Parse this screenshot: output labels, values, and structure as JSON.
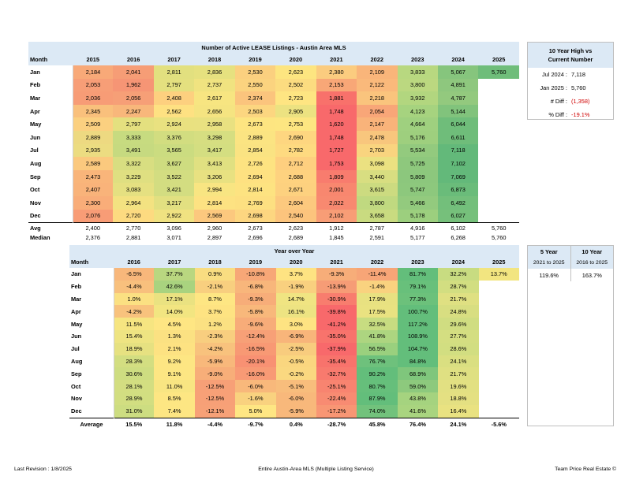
{
  "listings": {
    "title": "Number of Active LEASE Listings - Austin Area MLS",
    "month_header": "Month",
    "years": [
      "2015",
      "2016",
      "2017",
      "2018",
      "2019",
      "2020",
      "2021",
      "2022",
      "2023",
      "2024",
      "2025"
    ],
    "rows": [
      {
        "month": "Jan",
        "values": [
          "2,184",
          "2,041",
          "2,811",
          "2,836",
          "2,530",
          "2,623",
          "2,380",
          "2,109",
          "3,833",
          "5,067",
          "5,760"
        ],
        "colors": [
          "#f8a978",
          "#f69d76",
          "#e2e07f",
          "#e6e17f",
          "#fbd07f",
          "#fde580",
          "#fbcc7f",
          "#f9b57a",
          "#b8d880",
          "#86c57d",
          "#6fbd7a"
        ]
      },
      {
        "month": "Feb",
        "values": [
          "2,053",
          "1,962",
          "2,797",
          "2,737",
          "2,550",
          "2,502",
          "2,153",
          "2,122",
          "3,800",
          "4,891",
          ""
        ],
        "colors": [
          "#f79e77",
          "#f69575",
          "#e4e07f",
          "#f0e380",
          "#fbd37f",
          "#fcdc80",
          "#f8a777",
          "#fab97b",
          "#bbd880",
          "#8ec77e",
          ""
        ]
      },
      {
        "month": "Mar",
        "values": [
          "2,036",
          "2,056",
          "2,408",
          "2,617",
          "2,374",
          "2,723",
          "1,881",
          "2,218",
          "3,932",
          "4,787",
          ""
        ],
        "colors": [
          "#f79c76",
          "#f69f77",
          "#fdd07f",
          "#f7e581",
          "#fbc47d",
          "#fee582",
          "#f8716b",
          "#fac47d",
          "#b2d67f",
          "#93c97e",
          ""
        ]
      },
      {
        "month": "Apr",
        "values": [
          "2,345",
          "2,247",
          "2,562",
          "2,656",
          "2,503",
          "2,905",
          "1,748",
          "2,054",
          "4,123",
          "5,144",
          ""
        ],
        "colors": [
          "#f9c07c",
          "#f8b77b",
          "#fee182",
          "#f5e481",
          "#fcd680",
          "#ece281",
          "#f8696b",
          "#f8a678",
          "#a6d37f",
          "#81c37c",
          ""
        ]
      },
      {
        "month": "May",
        "values": [
          "2,509",
          "2,797",
          "2,924",
          "2,958",
          "2,673",
          "2,753",
          "1,620",
          "2,147",
          "4,664",
          "6,044",
          ""
        ],
        "colors": [
          "#fbd080",
          "#e4e07f",
          "#e9e180",
          "#e9e181",
          "#fde581",
          "#fde681",
          "#f8696b",
          "#f9b37a",
          "#9fd07f",
          "#6fbd7a",
          ""
        ]
      },
      {
        "month": "Jun",
        "values": [
          "2,889",
          "3,333",
          "3,376",
          "3,298",
          "2,889",
          "2,690",
          "1,748",
          "2,478",
          "5,176",
          "6,611",
          ""
        ],
        "colors": [
          "#edd981",
          "#c7db80",
          "#d2dd80",
          "#d6de81",
          "#fbe482",
          "#fed680",
          "#f8696b",
          "#f8c67d",
          "#9ecf7e",
          "#6fbd7a",
          ""
        ]
      },
      {
        "month": "Jul",
        "values": [
          "2,935",
          "3,491",
          "3,565",
          "3,417",
          "2,854",
          "2,782",
          "1,727",
          "2,703",
          "5,534",
          "7,118",
          ""
        ],
        "colors": [
          "#ecdc81",
          "#c6da80",
          "#cbdc80",
          "#d4de81",
          "#fae382",
          "#feda80",
          "#f8696b",
          "#f9d47f",
          "#93ca7e",
          "#63b97a",
          ""
        ]
      },
      {
        "month": "Aug",
        "values": [
          "2,589",
          "3,322",
          "3,627",
          "3,413",
          "2,726",
          "2,712",
          "1,753",
          "3,098",
          "5,725",
          "7,102",
          ""
        ],
        "colors": [
          "#fbc97e",
          "#d8de81",
          "#cedc80",
          "#e0e081",
          "#fde381",
          "#fecf7f",
          "#f8696b",
          "#ebe181",
          "#8ec87d",
          "#63b97a",
          ""
        ]
      },
      {
        "month": "Sep",
        "values": [
          "2,473",
          "3,229",
          "3,522",
          "3,206",
          "2,694",
          "2,688",
          "1,809",
          "3,440",
          "5,809",
          "7,069",
          ""
        ],
        "colors": [
          "#f9b57a",
          "#dfdf81",
          "#d3dd81",
          "#e8e181",
          "#fee181",
          "#fed27f",
          "#f87c6e",
          "#d8de81",
          "#8cc77d",
          "#63b97a",
          ""
        ]
      },
      {
        "month": "Oct",
        "values": [
          "2,407",
          "3,083",
          "3,421",
          "2,994",
          "2,814",
          "2,671",
          "2,001",
          "3,615",
          "5,747",
          "6,873",
          ""
        ],
        "colors": [
          "#f9b37a",
          "#e5e081",
          "#d3dd81",
          "#f8e582",
          "#fde381",
          "#fdd17f",
          "#f8876f",
          "#ccdb80",
          "#8dc87d",
          "#6abc7a",
          ""
        ]
      },
      {
        "month": "Nov",
        "values": [
          "2,300",
          "2,964",
          "3,217",
          "2,814",
          "2,769",
          "2,604",
          "2,022",
          "3,800",
          "5,466",
          "6,492",
          ""
        ],
        "colors": [
          "#f9ad79",
          "#f3e281",
          "#e2e081",
          "#fde282",
          "#fde081",
          "#fcc97e",
          "#f88970",
          "#c0d980",
          "#93ca7e",
          "#73bf7b",
          ""
        ]
      },
      {
        "month": "Dec",
        "values": [
          "2,076",
          "2,720",
          "2,922",
          "2,569",
          "2,698",
          "2,540",
          "2,102",
          "3,658",
          "5,178",
          "6,027",
          ""
        ],
        "colors": [
          "#f89c76",
          "#fdda80",
          "#f0e281",
          "#fcc87e",
          "#fdd680",
          "#fcc47d",
          "#f89d76",
          "#c9db80",
          "#9ccf7e",
          "#76c07b",
          ""
        ]
      }
    ],
    "avg_label": "Avg",
    "avg": [
      "2,400",
      "2,770",
      "3,096",
      "2,960",
      "2,673",
      "2,623",
      "1,912",
      "2,787",
      "4,916",
      "6,102",
      "5,760"
    ],
    "median_label": "Median",
    "median": [
      "2,376",
      "2,881",
      "3,071",
      "2,897",
      "2,696",
      "2,689",
      "1,845",
      "2,591",
      "5,177",
      "6,268",
      "5,760"
    ]
  },
  "high_box": {
    "title_line1": "10 Year High vs",
    "title_line2": "Current Number",
    "items": [
      {
        "key": "Jul 2024 :",
        "value": "7,118",
        "red": false
      },
      {
        "key": "Jan 2025 :",
        "value": "5,760",
        "red": false
      },
      {
        "key": "# Diff :",
        "value": "(1,358)",
        "red": true
      },
      {
        "key": "% Diff :",
        "value": "-19.1%",
        "red": true
      }
    ]
  },
  "yoy": {
    "title": "Year over Year",
    "month_header": "Month",
    "years": [
      "2016",
      "2017",
      "2018",
      "2019",
      "2020",
      "2021",
      "2022",
      "2023",
      "2024",
      "2025"
    ],
    "rows": [
      {
        "month": "Jan",
        "values": [
          "-6.5%",
          "37.7%",
          "0.9%",
          "-10.8%",
          "3.7%",
          "-9.3%",
          "-11.4%",
          "81.7%",
          "32.2%",
          "13.7%"
        ],
        "colors": [
          "#f8b77b",
          "#b9d780",
          "#f9dd81",
          "#f7a777",
          "#fee382",
          "#f7ad79",
          "#f7a577",
          "#63be7b",
          "#c8dc81",
          "#f2e580"
        ]
      },
      {
        "month": "Feb",
        "values": [
          "-4.4%",
          "42.6%",
          "-2.1%",
          "-6.8%",
          "-1.9%",
          "-13.9%",
          "-1.4%",
          "79.1%",
          "28.7%",
          ""
        ],
        "colors": [
          "#f8c07d",
          "#a9d37f",
          "#f8cf7f",
          "#f8b67b",
          "#f9d07f",
          "#f69c76",
          "#f9d27f",
          "#68c07b",
          "#d2de81",
          ""
        ]
      },
      {
        "month": "Mar",
        "values": [
          "1.0%",
          "17.1%",
          "8.7%",
          "-9.3%",
          "14.7%",
          "-30.9%",
          "17.9%",
          "77.3%",
          "21.7%",
          ""
        ],
        "colors": [
          "#fbe082",
          "#eae281",
          "#fee683",
          "#f7ad79",
          "#f0e482",
          "#f87d6e",
          "#e8e181",
          "#6cc17b",
          "#dfe082",
          ""
        ]
      },
      {
        "month": "Apr",
        "values": [
          "-4.2%",
          "14.0%",
          "3.7%",
          "-5.8%",
          "16.1%",
          "-39.8%",
          "17.5%",
          "100.7%",
          "24.8%",
          ""
        ],
        "colors": [
          "#f8c27d",
          "#f2e581",
          "#fee382",
          "#f8b87b",
          "#ede382",
          "#f8696b",
          "#e9e281",
          "#63be7b",
          "#d8de81",
          ""
        ]
      },
      {
        "month": "May",
        "values": [
          "11.5%",
          "4.5%",
          "1.2%",
          "-9.6%",
          "3.0%",
          "-41.2%",
          "32.5%",
          "117.2%",
          "29.6%",
          ""
        ],
        "colors": [
          "#f6e581",
          "#fee683",
          "#fbe182",
          "#f7ac79",
          "#fee382",
          "#f8696b",
          "#c7dc81",
          "#63be7b",
          "#d0dd81",
          ""
        ]
      },
      {
        "month": "Jun",
        "values": [
          "15.4%",
          "1.3%",
          "-2.3%",
          "-12.4%",
          "-6.9%",
          "-35.0%",
          "41.8%",
          "108.9%",
          "27.7%",
          ""
        ],
        "colors": [
          "#eee482",
          "#fbe182",
          "#f8ce7f",
          "#f7a077",
          "#f8b57a",
          "#f8736c",
          "#add580",
          "#63be7b",
          "#d4de81",
          ""
        ]
      },
      {
        "month": "Jul",
        "values": [
          "18.9%",
          "2.1%",
          "-4.2%",
          "-16.5%",
          "-2.5%",
          "-37.9%",
          "56.5%",
          "104.7%",
          "28.6%",
          ""
        ],
        "colors": [
          "#e6e181",
          "#fde282",
          "#f8c27d",
          "#f89974",
          "#f8cc7e",
          "#f8696b",
          "#9ad07e",
          "#63be7b",
          "#d2de81",
          ""
        ]
      },
      {
        "month": "Aug",
        "values": [
          "28.3%",
          "9.2%",
          "-5.9%",
          "-20.1%",
          "-0.5%",
          "-35.4%",
          "76.7%",
          "84.8%",
          "24.1%",
          ""
        ],
        "colors": [
          "#d3de81",
          "#fde683",
          "#f8b87b",
          "#f89173",
          "#fad67f",
          "#f8736c",
          "#6ec17c",
          "#63be7b",
          "#dadf81",
          ""
        ]
      },
      {
        "month": "Sep",
        "values": [
          "30.6%",
          "9.1%",
          "-9.0%",
          "-16.0%",
          "-0.2%",
          "-32.7%",
          "90.2%",
          "68.9%",
          "21.7%",
          ""
        ],
        "colors": [
          "#cedd81",
          "#fde683",
          "#f7ae79",
          "#f89a75",
          "#fad880",
          "#f87a6e",
          "#63be7b",
          "#7fc67c",
          "#dfe082",
          ""
        ]
      },
      {
        "month": "Oct",
        "values": [
          "28.1%",
          "11.0%",
          "-12.5%",
          "-6.0%",
          "-5.1%",
          "-25.1%",
          "80.7%",
          "59.0%",
          "19.6%",
          ""
        ],
        "colors": [
          "#d3de81",
          "#f8e582",
          "#f7a077",
          "#f8b87b",
          "#f8bd7c",
          "#f88470",
          "#66bf7b",
          "#8dc97d",
          "#e2e082",
          ""
        ]
      },
      {
        "month": "Nov",
        "values": [
          "28.9%",
          "8.5%",
          "-12.5%",
          "-1.6%",
          "-6.0%",
          "-22.4%",
          "87.9%",
          "43.8%",
          "18.8%",
          ""
        ],
        "colors": [
          "#d2de81",
          "#fde683",
          "#f7a077",
          "#f9d27f",
          "#f8b87b",
          "#f88b72",
          "#63be7b",
          "#a5d37f",
          "#e4e082",
          ""
        ]
      },
      {
        "month": "Dec",
        "values": [
          "31.0%",
          "7.4%",
          "-12.1%",
          "5.0%",
          "-5.9%",
          "-17.2%",
          "74.0%",
          "41.6%",
          "16.4%",
          ""
        ],
        "colors": [
          "#cddd81",
          "#fde683",
          "#f7a177",
          "#fee683",
          "#f8b87b",
          "#f89674",
          "#72c27c",
          "#a9d47f",
          "#e9e281",
          ""
        ]
      }
    ],
    "avg_label": "Average",
    "avg": [
      "15.5%",
      "11.8%",
      "-4.4%",
      "-9.7%",
      "0.4%",
      "-28.7%",
      "45.8%",
      "76.4%",
      "24.1%",
      "-5.6%"
    ]
  },
  "growth": {
    "col1_title": "5 Year",
    "col1_sub": "2021 to 2025",
    "col1_value": "119.6%",
    "col2_title": "10 Year",
    "col2_sub": "2016 to 2025",
    "col2_value": "163.7%"
  },
  "footer": {
    "left": "Last Revision : 1/8/2025",
    "center": "Entire Austin-Area MLS (Multiple Listing Service)",
    "right": "Team Price Real Estate ©"
  }
}
